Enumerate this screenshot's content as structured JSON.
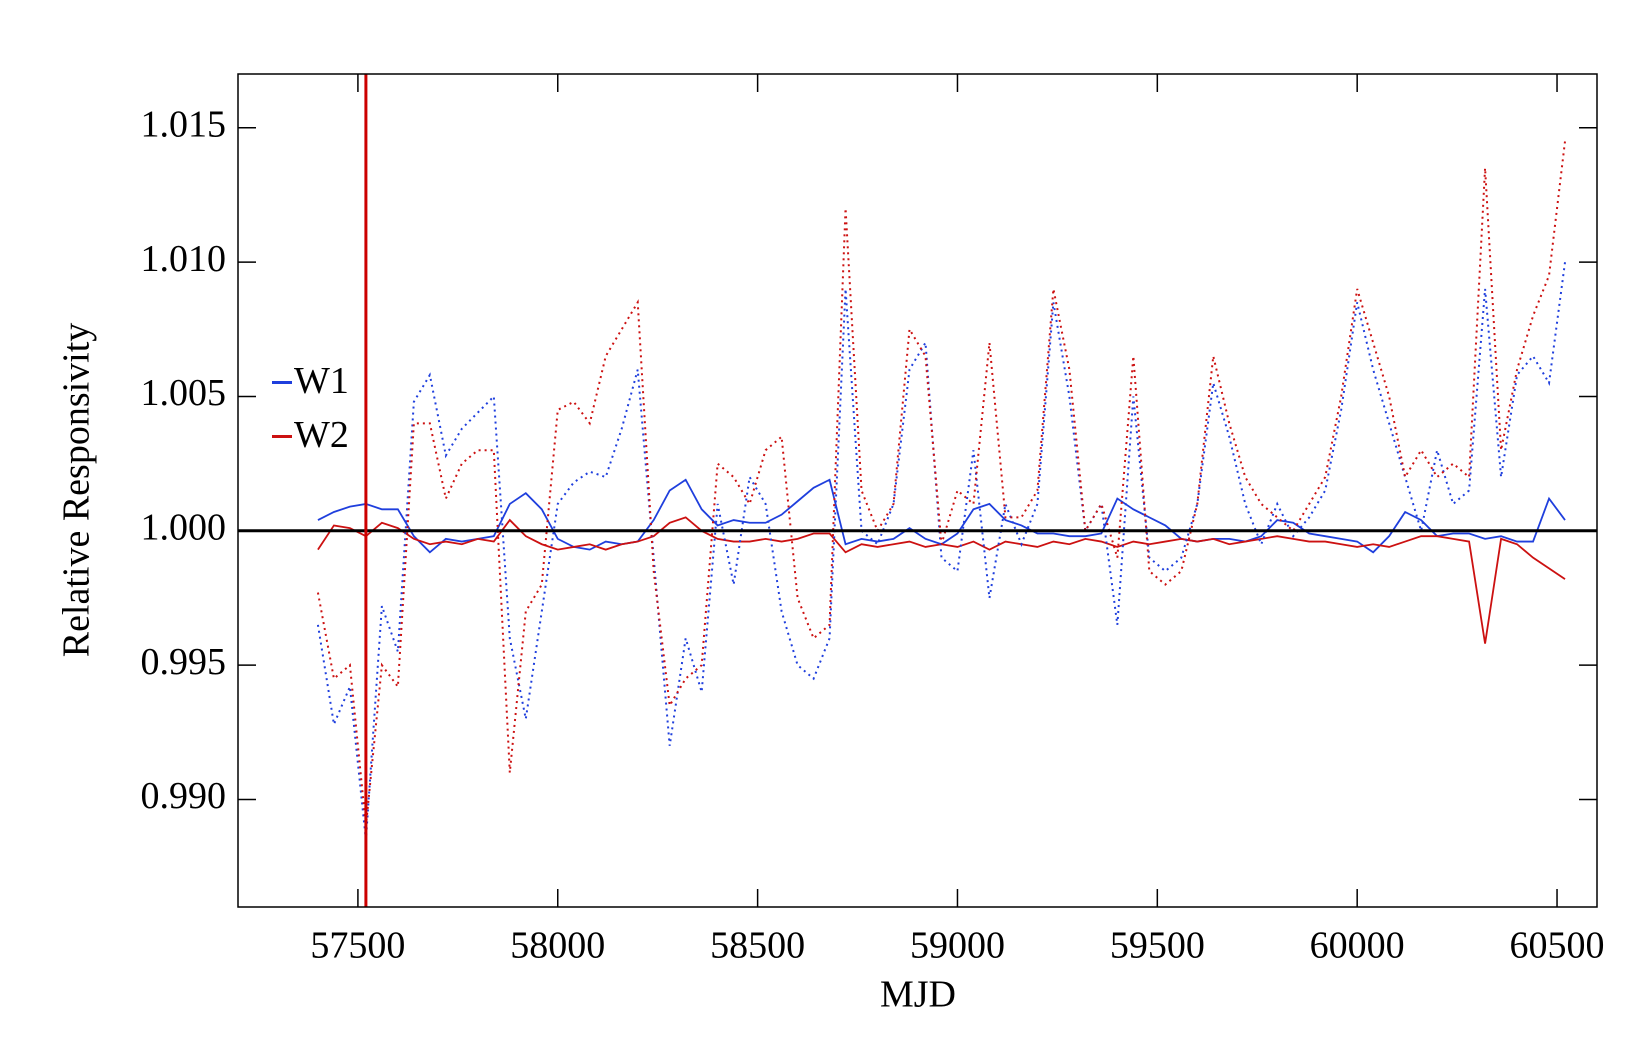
{
  "chart_data": {
    "type": "line",
    "xlabel": "MJD",
    "ylabel": "Relative Responsivity",
    "x": [
      57400,
      57440,
      57480,
      57520,
      57560,
      57600,
      57640,
      57680,
      57720,
      57760,
      57800,
      57840,
      57880,
      57920,
      57960,
      58000,
      58040,
      58080,
      58120,
      58160,
      58200,
      58240,
      58280,
      58320,
      58360,
      58400,
      58440,
      58480,
      58520,
      58560,
      58600,
      58640,
      58680,
      58720,
      58760,
      58800,
      58840,
      58880,
      58920,
      58960,
      59000,
      59040,
      59080,
      59120,
      59160,
      59200,
      59240,
      59280,
      59320,
      59360,
      59400,
      59440,
      59480,
      59520,
      59560,
      59600,
      59640,
      59680,
      59720,
      59760,
      59800,
      59840,
      59880,
      59920,
      59960,
      60000,
      60040,
      60080,
      60120,
      60160,
      60200,
      60240,
      60280,
      60320,
      60360,
      60400,
      60440,
      60480,
      60520
    ],
    "series": [
      {
        "name": "W1",
        "color": "#1f3fdd",
        "dash": "solid",
        "values": [
          1.0004,
          1.0007,
          1.0009,
          1.001,
          1.0008,
          1.0008,
          0.9998,
          0.9992,
          0.9997,
          0.9996,
          0.9997,
          0.9998,
          1.001,
          1.0014,
          1.0008,
          0.9997,
          0.9994,
          0.9993,
          0.9996,
          0.9995,
          0.9996,
          1.0004,
          1.0015,
          1.0019,
          1.0008,
          1.0002,
          1.0004,
          1.0003,
          1.0003,
          1.0006,
          1.0011,
          1.0016,
          1.0019,
          0.9995,
          0.9997,
          0.9996,
          0.9997,
          1.0001,
          0.9997,
          0.9995,
          0.9999,
          1.0008,
          1.001,
          1.0004,
          1.0002,
          0.9999,
          0.9999,
          0.9998,
          0.9998,
          0.9999,
          1.0012,
          1.0008,
          1.0005,
          1.0002,
          0.9997,
          0.9996,
          0.9997,
          0.9997,
          0.9996,
          0.9998,
          1.0004,
          1.0003,
          0.9999,
          0.9998,
          0.9997,
          0.9996,
          0.9992,
          0.9998,
          1.0007,
          1.0004,
          0.9998,
          0.9999,
          0.9999,
          0.9997,
          0.9998,
          0.9996,
          0.9996,
          1.0012,
          1.0004
        ]
      },
      {
        "name": "W2",
        "color": "#cc1111",
        "dash": "solid",
        "values": [
          0.9993,
          1.0002,
          1.0001,
          0.9998,
          1.0003,
          1.0001,
          0.9997,
          0.9995,
          0.9996,
          0.9995,
          0.9997,
          0.9996,
          1.0004,
          0.9998,
          0.9995,
          0.9993,
          0.9994,
          0.9995,
          0.9993,
          0.9995,
          0.9996,
          0.9998,
          1.0003,
          1.0005,
          1.0,
          0.9997,
          0.9996,
          0.9996,
          0.9997,
          0.9996,
          0.9997,
          0.9999,
          0.9999,
          0.9992,
          0.9995,
          0.9994,
          0.9995,
          0.9996,
          0.9994,
          0.9995,
          0.9994,
          0.9996,
          0.9993,
          0.9996,
          0.9995,
          0.9994,
          0.9996,
          0.9995,
          0.9997,
          0.9996,
          0.9994,
          0.9996,
          0.9995,
          0.9996,
          0.9997,
          0.9996,
          0.9997,
          0.9995,
          0.9996,
          0.9997,
          0.9998,
          0.9997,
          0.9996,
          0.9996,
          0.9995,
          0.9994,
          0.9995,
          0.9994,
          0.9996,
          0.9998,
          0.9998,
          0.9997,
          0.9996,
          0.9958,
          0.9997,
          0.9995,
          0.999,
          0.9986,
          0.9982
        ]
      },
      {
        "color": "#1f3fdd",
        "dash": "dotted",
        "values": [
          0.9965,
          0.9928,
          0.9942,
          0.9885,
          0.9972,
          0.9955,
          1.0048,
          1.0058,
          1.0028,
          1.0038,
          1.0044,
          1.005,
          0.996,
          0.993,
          0.997,
          1.001,
          1.0018,
          1.0022,
          1.002,
          1.0038,
          1.006,
          0.999,
          0.992,
          0.996,
          0.994,
          1.001,
          0.998,
          1.002,
          1.001,
          0.997,
          0.995,
          0.9945,
          0.996,
          1.009,
          1.0,
          0.9995,
          1.001,
          1.006,
          1.007,
          0.999,
          0.9985,
          1.003,
          0.9975,
          1.001,
          0.9995,
          1.001,
          1.0085,
          1.005,
          1.0,
          1.001,
          0.9965,
          1.005,
          0.999,
          0.9985,
          0.999,
          1.001,
          1.0055,
          1.0035,
          1.001,
          0.9995,
          1.001,
          0.9998,
          1.0005,
          1.0015,
          1.0045,
          1.0085,
          1.006,
          1.004,
          1.002,
          1.0,
          1.003,
          1.001,
          1.0015,
          1.009,
          1.002,
          1.0058,
          1.0065,
          1.0055,
          1.01
        ]
      },
      {
        "color": "#cc1111",
        "dash": "dotted",
        "values": [
          0.9977,
          0.9945,
          0.995,
          0.989,
          0.995,
          0.9942,
          1.004,
          1.004,
          1.0012,
          1.0025,
          1.003,
          1.003,
          0.991,
          0.997,
          0.998,
          1.0045,
          1.0048,
          1.004,
          1.0065,
          1.0075,
          1.0085,
          0.9985,
          0.9935,
          0.9945,
          0.995,
          1.0025,
          1.002,
          1.001,
          1.003,
          1.0035,
          0.9975,
          0.996,
          0.9965,
          1.012,
          1.0015,
          1.0,
          1.001,
          1.0075,
          1.0065,
          0.9995,
          1.0015,
          1.001,
          1.007,
          1.0005,
          1.0005,
          1.0015,
          1.009,
          1.006,
          1.0,
          1.001,
          0.999,
          1.0065,
          0.9985,
          0.998,
          0.9985,
          1.001,
          1.0065,
          1.004,
          1.002,
          1.001,
          1.0005,
          1.0,
          1.001,
          1.002,
          1.005,
          1.009,
          1.007,
          1.005,
          1.002,
          1.003,
          1.002,
          1.0025,
          1.002,
          1.0135,
          1.003,
          1.006,
          1.008,
          1.0095,
          1.0145
        ]
      }
    ],
    "xlim": [
      57200,
      60600
    ],
    "xticks": [
      57500,
      58000,
      58500,
      59000,
      59500,
      60000,
      60500
    ],
    "ylim": [
      0.986,
      1.017
    ],
    "yticks": [
      {
        "value": 0.99,
        "label": "0.990"
      },
      0.995,
      {
        "value": 1.0,
        "label": "1.000"
      },
      1.005,
      {
        "value": 1.01,
        "label": "1.010"
      },
      1.015
    ],
    "hlines": [
      {
        "value": 1.0,
        "color": "#000000"
      }
    ],
    "vlines": [
      {
        "value": 57520,
        "color": "#cc0000"
      }
    ],
    "legend": "center-left",
    "grid": false
  }
}
